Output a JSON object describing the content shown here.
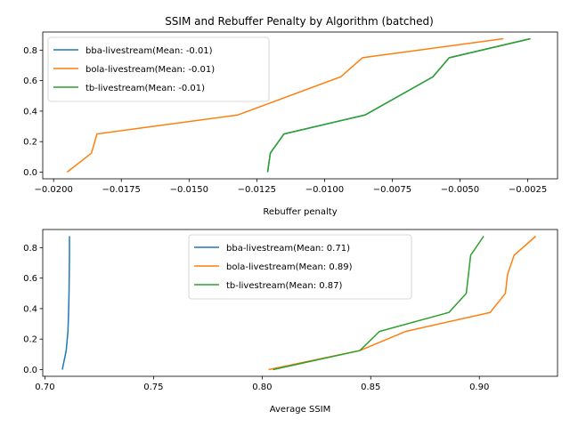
{
  "title": "SSIM and Rebuffer Penalty by Algorithm (batched)",
  "colors": {
    "bba": "#1f77b4",
    "bola": "#ff7f0e",
    "tb": "#2ca02c"
  },
  "chart_data": [
    {
      "type": "line",
      "title": "SSIM and Rebuffer Penalty by Algorithm (batched)",
      "xlabel": "Rebuffer penalty",
      "ylabel": "",
      "xlim": [
        -0.0204,
        -0.0014
      ],
      "ylim": [
        -0.04375,
        0.91875
      ],
      "xticks": [
        -0.02,
        -0.0175,
        -0.015,
        -0.0125,
        -0.01,
        -0.0075,
        -0.005,
        -0.0025
      ],
      "xtick_labels": [
        "−0.0200",
        "−0.0175",
        "−0.0150",
        "−0.0125",
        "−0.0100",
        "−0.0075",
        "−0.0050",
        "−0.0025"
      ],
      "yticks": [
        0.0,
        0.2,
        0.4,
        0.6,
        0.8
      ],
      "ytick_labels": [
        "0.0",
        "0.2",
        "0.4",
        "0.6",
        "0.8"
      ],
      "legend_position": "top-left",
      "series": [
        {
          "name": "bba-livestream(Mean: -0.01)",
          "color": "#1f77b4",
          "x": [
            -0.0121,
            -0.012,
            -0.0115,
            -0.0085,
            -0.006,
            -0.0054,
            -0.0024
          ],
          "y": [
            0.0,
            0.125,
            0.25,
            0.375,
            0.625,
            0.75,
            0.875
          ]
        },
        {
          "name": "bola-livestream(Mean: -0.01)",
          "color": "#ff7f0e",
          "x": [
            -0.0195,
            -0.0186,
            -0.0184,
            -0.0132,
            -0.0094,
            -0.0086,
            -0.0034
          ],
          "y": [
            0.0,
            0.125,
            0.25,
            0.375,
            0.625,
            0.75,
            0.875
          ]
        },
        {
          "name": "tb-livestream(Mean: -0.01)",
          "color": "#2ca02c",
          "x": [
            -0.0121,
            -0.012,
            -0.0115,
            -0.0085,
            -0.006,
            -0.0054,
            -0.0024
          ],
          "y": [
            0.0,
            0.125,
            0.25,
            0.375,
            0.625,
            0.75,
            0.875
          ]
        }
      ]
    },
    {
      "type": "line",
      "title": "",
      "xlabel": "Average SSIM",
      "ylabel": "",
      "xlim": [
        0.699,
        0.936
      ],
      "ylim": [
        -0.04375,
        0.91875
      ],
      "xticks": [
        0.7,
        0.75,
        0.8,
        0.85,
        0.9
      ],
      "xtick_labels": [
        "0.70",
        "0.75",
        "0.80",
        "0.85",
        "0.90"
      ],
      "yticks": [
        0.0,
        0.2,
        0.4,
        0.6,
        0.8
      ],
      "ytick_labels": [
        "0.0",
        "0.2",
        "0.4",
        "0.6",
        "0.8"
      ],
      "legend_position": "upper-center",
      "series": [
        {
          "name": "bba-livestream(Mean: 0.71)",
          "color": "#1f77b4",
          "x": [
            0.708,
            0.7098,
            0.7106,
            0.7109,
            0.7111,
            0.7112,
            0.7113,
            0.7113
          ],
          "y": [
            0.0,
            0.125,
            0.25,
            0.375,
            0.5,
            0.625,
            0.75,
            0.875
          ]
        },
        {
          "name": "bola-livestream(Mean: 0.89)",
          "color": "#ff7f0e",
          "x": [
            0.803,
            0.845,
            0.866,
            0.905,
            0.912,
            0.913,
            0.916,
            0.926
          ],
          "y": [
            0.0,
            0.125,
            0.25,
            0.375,
            0.5,
            0.625,
            0.75,
            0.875
          ]
        },
        {
          "name": "tb-livestream(Mean: 0.87)",
          "color": "#2ca02c",
          "x": [
            0.805,
            0.845,
            0.854,
            0.886,
            0.894,
            0.895,
            0.896,
            0.902
          ],
          "y": [
            0.0,
            0.125,
            0.25,
            0.375,
            0.5,
            0.625,
            0.75,
            0.875
          ]
        }
      ]
    }
  ]
}
